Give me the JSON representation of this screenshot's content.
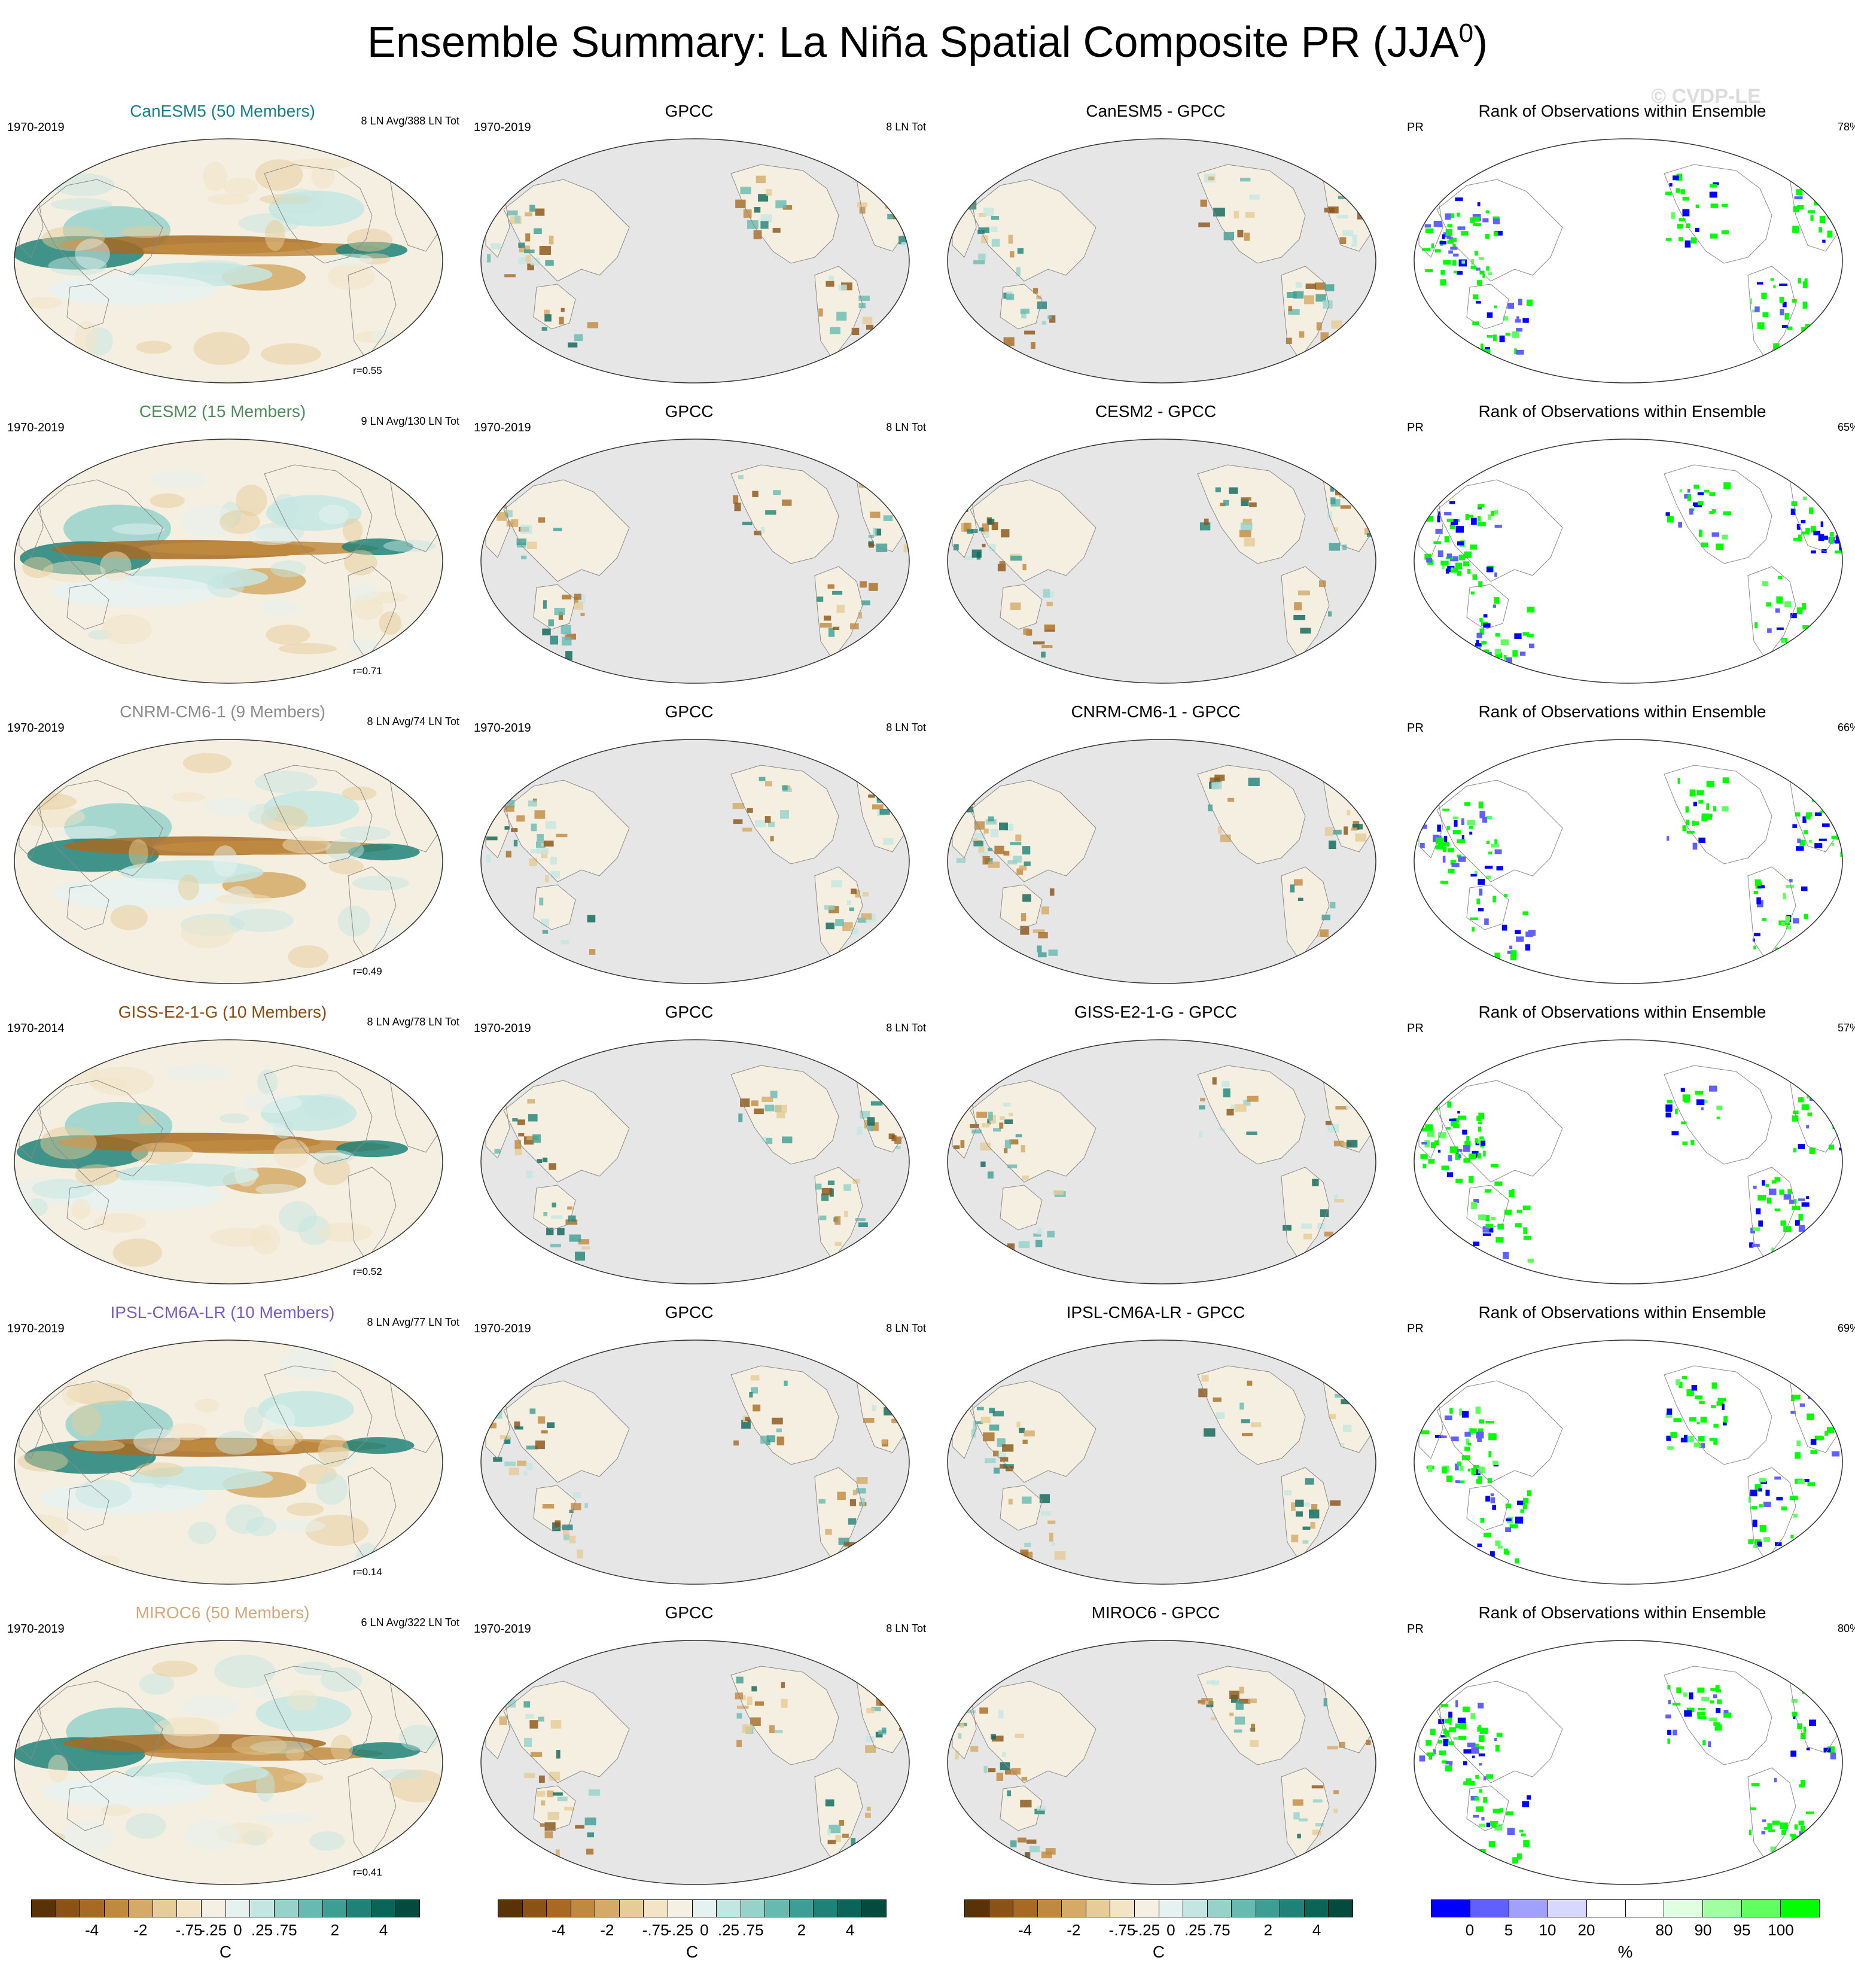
{
  "title": "Ensemble Summary: La Niña Spatial Composite PR (JJA",
  "title_sup": "0",
  "title_close": ")",
  "watermark": "© CVDP-LE",
  "rows": [
    {
      "model_title": "CanESM5 (50 Members)",
      "model_color": "#16808a",
      "period": "1970-2019",
      "model_count": "8 LN Avg/388 LN Tot",
      "r": "r=0.55",
      "obs_period": "1970-2019",
      "obs_count": "8 LN Tot",
      "diff_title": "CanESM5 - GPCC",
      "rank_pct": "78%"
    },
    {
      "model_title": "CESM2 (15 Members)",
      "model_color": "#4e8a5a",
      "period": "1970-2019",
      "model_count": "9 LN Avg/130 LN Tot",
      "r": "r=0.71",
      "obs_period": "1970-2019",
      "obs_count": "8 LN Tot",
      "diff_title": "CESM2 - GPCC",
      "rank_pct": "65%"
    },
    {
      "model_title": "CNRM-CM6-1 (9 Members)",
      "model_color": "#8c8c8c",
      "period": "1970-2019",
      "model_count": "8 LN Avg/74 LN Tot",
      "r": "r=0.49",
      "obs_period": "1970-2019",
      "obs_count": "8 LN Tot",
      "diff_title": "CNRM-CM6-1 - GPCC",
      "rank_pct": "66%"
    },
    {
      "model_title": "GISS-E2-1-G (10 Members)",
      "model_color": "#8a4a10",
      "period": "1970-2014",
      "model_count": "8 LN Avg/78 LN Tot",
      "r": "r=0.52",
      "obs_period": "1970-2019",
      "obs_count": "8 LN Tot",
      "diff_title": "GISS-E2-1-G - GPCC",
      "rank_pct": "57%"
    },
    {
      "model_title": "IPSL-CM6A-LR (10 Members)",
      "model_color": "#7a5cc0",
      "period": "1970-2019",
      "model_count": "8 LN Avg/77 LN Tot",
      "r": "r=0.14",
      "obs_period": "1970-2019",
      "obs_count": "8 LN Tot",
      "diff_title": "IPSL-CM6A-LR - GPCC",
      "rank_pct": "69%"
    },
    {
      "model_title": "MIROC6 (50 Members)",
      "model_color": "#d6a878",
      "period": "1970-2019",
      "model_count": "6 LN Avg/322 LN Tot",
      "r": "r=0.41",
      "obs_period": "1970-2019",
      "obs_count": "8 LN Tot",
      "diff_title": "MIROC6 - GPCC",
      "rank_pct": "80%"
    }
  ],
  "obs_title": "GPCC",
  "rank_title": "Rank of Observations within Ensemble",
  "rank_var": "PR",
  "colorbars": {
    "diverging_colors": [
      "#5a3208",
      "#8a5214",
      "#a86a22",
      "#c08a3e",
      "#d4aa66",
      "#e6cc96",
      "#f2e4c4",
      "#f5f0e4",
      "#e6f2f0",
      "#c4e6e2",
      "#96d2ca",
      "#66bab0",
      "#3c9e94",
      "#1e8278",
      "#0a6458",
      "#044a3e"
    ],
    "diverging_ticks": [
      "-4",
      "-2",
      "-.75",
      "-.25",
      "0",
      ".25",
      ".75",
      "2",
      "4"
    ],
    "diverging_unit": "C",
    "rank_colors": [
      "#0000ff",
      "#6060ff",
      "#a0a0ff",
      "#d8d8ff",
      "#ffffff",
      "#ffffff",
      "#e0ffe0",
      "#a0ffa0",
      "#60ff60",
      "#00ff00"
    ],
    "rank_ticks": [
      "0",
      "5",
      "10",
      "20",
      "80",
      "90",
      "95",
      "100"
    ],
    "rank_unit": "%"
  }
}
